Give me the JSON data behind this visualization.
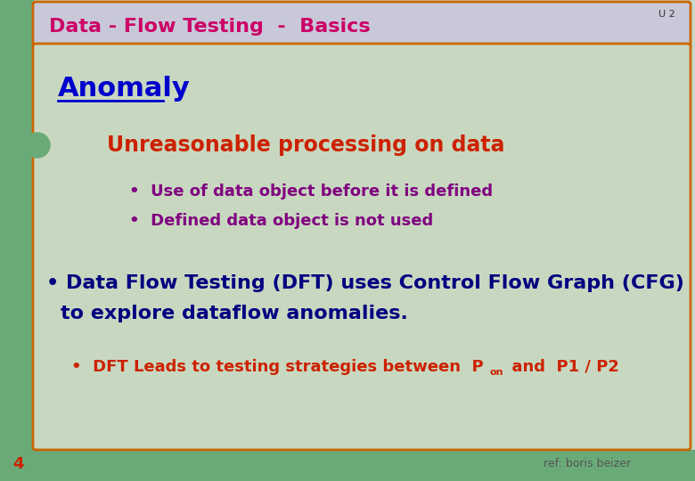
{
  "title": "Data - Flow Testing  -  Basics",
  "title_color": "#cc0066",
  "u2_label": "U 2",
  "u2_color": "#333333",
  "header_bg": "#c8c8d8",
  "header_border": "#cc6600",
  "main_bg": "#c8d8c0",
  "main_border": "#cc6600",
  "left_strip_color": "#6aaa78",
  "bottom_strip_color": "#6aaa78",
  "slide_bg": "#c8d8c8",
  "anomaly_title": "Anomaly",
  "anomaly_color": "#0000cc",
  "sub_heading": "Unreasonable processing on data",
  "sub_heading_color": "#cc2200",
  "bullets_color": "#800080",
  "bullets": [
    "Use of data object before it is defined",
    "Defined data object is not used"
  ],
  "main_text_line1": "• Data Flow Testing (DFT) uses Control Flow Graph (CFG)",
  "main_text_line2": "to explore dataflow anomalies.",
  "main_text_color": "#000080",
  "dft_bullet_color": "#cc2200",
  "dft_bullet_text": "•  DFT Leads to testing strategies between  P",
  "dft_bullet_suffix": "  and  P1 / P2",
  "dft_sub": "on",
  "footer_text": "ref: boris beizer",
  "footer_color": "#555555",
  "page_num": "4",
  "page_num_color": "#cc2200"
}
